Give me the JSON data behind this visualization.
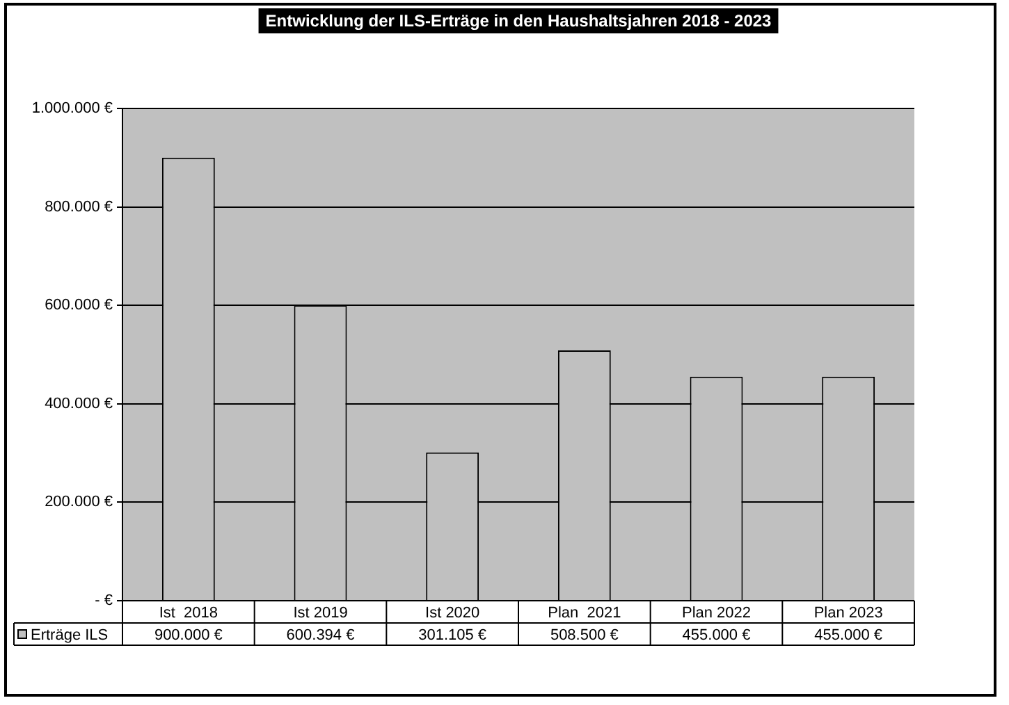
{
  "chart_data": {
    "type": "bar",
    "title": "Entwicklung der ILS-Erträge in den Haushaltsjahren 2018 - 2023",
    "categories": [
      "Ist  2018",
      "Ist 2019",
      "Ist 2020",
      "Plan  2021",
      "Plan 2022",
      "Plan 2023"
    ],
    "series": [
      {
        "name": "Erträge ILS",
        "color": "#c0c0c0",
        "values": [
          900000,
          600394,
          301105,
          508500,
          455000,
          455000
        ],
        "value_labels": [
          "900.000 €",
          "600.394 €",
          "301.105 €",
          "508.500 €",
          "455.000 €",
          "455.000 €"
        ]
      }
    ],
    "ylim": [
      0,
      1000000
    ],
    "yticks": [
      {
        "value": 0,
        "label": "- €"
      },
      {
        "value": 200000,
        "label": "200.000 €"
      },
      {
        "value": 400000,
        "label": "400.000 €"
      },
      {
        "value": 600000,
        "label": "600.000 €"
      },
      {
        "value": 800000,
        "label": "800.000 €"
      },
      {
        "value": 1000000,
        "label": "1.000.000 €"
      }
    ],
    "grid": "y",
    "legend": "bottom",
    "data_labels": true
  }
}
